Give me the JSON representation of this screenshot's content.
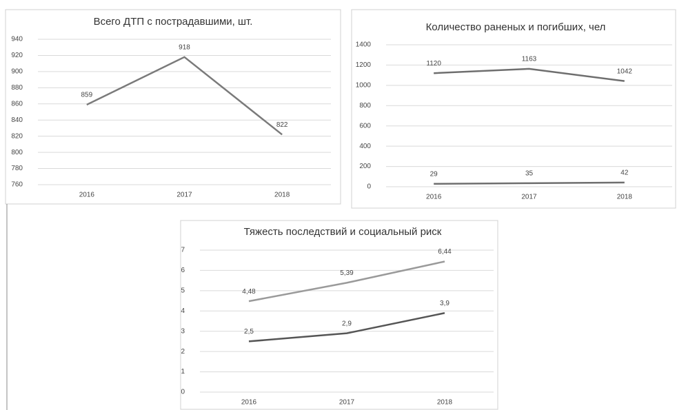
{
  "chart_data": [
    {
      "type": "line",
      "title": "Всего ДТП с пострадавшими, шт.",
      "categories": [
        "2016",
        "2017",
        "2018"
      ],
      "values": [
        859,
        918,
        822
      ],
      "color": "#7a7a7a",
      "ylim": [
        760,
        940
      ],
      "yticks": [
        760,
        780,
        800,
        820,
        840,
        860,
        880,
        900,
        920,
        940
      ],
      "grid": true
    },
    {
      "type": "line",
      "title": "Количество раненых и погибших, чел",
      "categories": [
        "2016",
        "2017",
        "2018"
      ],
      "series": [
        {
          "color": "#6e6e6e",
          "values": [
            1120,
            1163,
            1042
          ]
        },
        {
          "color": "#6e6e6e",
          "values": [
            29,
            35,
            42
          ]
        }
      ],
      "ylim": [
        0,
        1400
      ],
      "yticks": [
        0,
        200,
        400,
        600,
        800,
        1000,
        1200,
        1400
      ],
      "grid": true
    },
    {
      "type": "line",
      "title": "Тяжесть последствий  и социальный риск",
      "categories": [
        "2016",
        "2017",
        "2018"
      ],
      "series": [
        {
          "color": "#9a9a9a",
          "values": [
            4.48,
            5.39,
            6.44
          ],
          "value_labels": [
            "4,48",
            "5,39",
            "6,44"
          ]
        },
        {
          "color": "#555555",
          "values": [
            2.5,
            2.9,
            3.9
          ],
          "value_labels": [
            "2,5",
            "2,9",
            "3,9"
          ]
        }
      ],
      "ylim": [
        0,
        7
      ],
      "yticks": [
        0,
        1,
        2,
        3,
        4,
        5,
        6,
        7
      ],
      "grid": true
    }
  ]
}
